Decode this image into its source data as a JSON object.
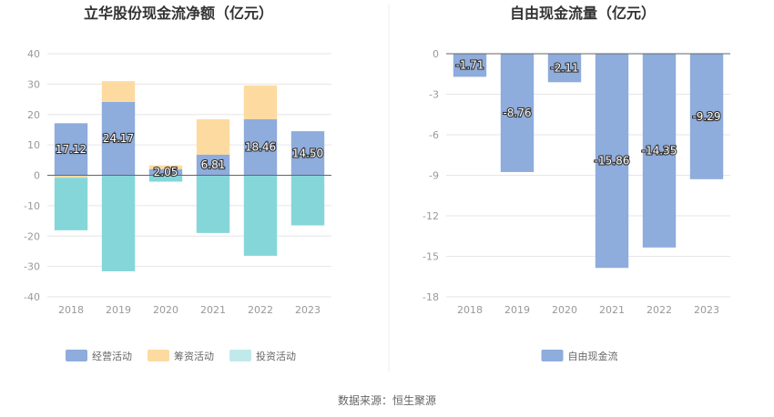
{
  "source_label": "数据来源：恒生聚源",
  "chart_data": [
    {
      "type": "bar",
      "stacked": true,
      "title": "立华股份现金流净额（亿元）",
      "categories": [
        "2018",
        "2019",
        "2020",
        "2021",
        "2022",
        "2023"
      ],
      "ylim": [
        -40,
        40
      ],
      "yticks": [
        40,
        30,
        20,
        10,
        0,
        -10,
        -20,
        -30,
        -40
      ],
      "grid": true,
      "legend_position": "bottom",
      "series": [
        {
          "name": "经营活动",
          "color": "#8eacdc",
          "values": [
            17.12,
            24.17,
            2.05,
            6.81,
            18.46,
            14.5
          ],
          "labels": [
            "17.12",
            "24.17",
            "2.05",
            "6.81",
            "18.46",
            "14.50"
          ]
        },
        {
          "name": "筹资活动",
          "color": "#fddba0",
          "values": [
            -0.8,
            6.8,
            1.2,
            11.6,
            11.1,
            0.0
          ]
        },
        {
          "name": "投资活动",
          "color": "#85d6d9",
          "values": [
            -17.3,
            -31.6,
            -2.1,
            -19.0,
            -26.5,
            -16.5
          ]
        }
      ]
    },
    {
      "type": "bar",
      "title": "自由现金流量（亿元）",
      "categories": [
        "2018",
        "2019",
        "2020",
        "2021",
        "2022",
        "2023"
      ],
      "ylim": [
        -18,
        0
      ],
      "yticks": [
        0,
        -3,
        -6,
        -9,
        -12,
        -15,
        -18
      ],
      "grid": true,
      "legend_position": "bottom",
      "series": [
        {
          "name": "自由现金流",
          "color": "#8eacdc",
          "values": [
            -1.71,
            -8.76,
            -2.11,
            -15.86,
            -14.35,
            -9.29
          ],
          "labels": [
            "-1.71",
            "-8.76",
            "-2.11",
            "-15.86",
            "-14.35",
            "-9.29"
          ]
        }
      ]
    }
  ]
}
